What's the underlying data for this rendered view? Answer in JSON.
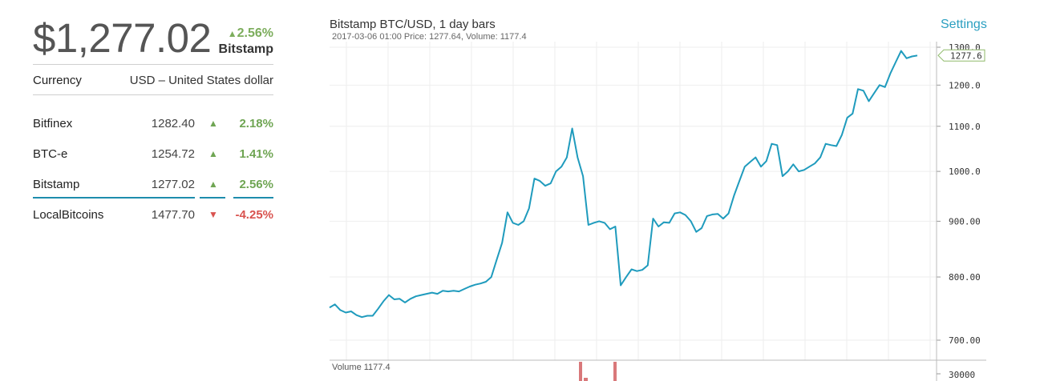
{
  "header": {
    "price": "$1,277.02",
    "change": "2.56%",
    "exchange": "Bitstamp"
  },
  "currency": {
    "label": "Currency",
    "value": "USD – United States dollar"
  },
  "exchanges": [
    {
      "name": "Bitfinex",
      "price": "1282.40",
      "direction": "up",
      "pct": "2.18%"
    },
    {
      "name": "BTC-e",
      "price": "1254.72",
      "direction": "up",
      "pct": "1.41%"
    },
    {
      "name": "Bitstamp",
      "price": "1277.02",
      "direction": "up",
      "pct": "2.56%",
      "selected": true
    },
    {
      "name": "LocalBitcoins",
      "price": "1477.70",
      "direction": "down",
      "pct": "-4.25%"
    }
  ],
  "chart": {
    "title": "Bitstamp BTC/USD, 1 day bars",
    "subtitle": "2017-03-06 01:00   Price: 1277.64, Volume: 1177.4",
    "settings_label": "Settings",
    "volume_label": "Volume 1177.4",
    "current_price_tag": "1277.6",
    "colors": {
      "line": "#1f9bbd",
      "grid": "#eeeeee",
      "volume": "#d9787a",
      "accent": "#2a9fc0"
    }
  },
  "chart_data": {
    "type": "line",
    "title": "Bitstamp BTC/USD, 1 day bars",
    "y_scale": "log",
    "y_ticks": [
      "1300.0",
      "1200.0",
      "1100.0",
      "1000.0",
      "900.00",
      "800.00",
      "700.00"
    ],
    "volume_ticks": [
      "30000"
    ],
    "ylim": [
      680,
      1310
    ],
    "grid": true,
    "series": [
      {
        "values": [
          750,
          755,
          746,
          742,
          744,
          738,
          735,
          737,
          737,
          748,
          760,
          770,
          763,
          764,
          758,
          764,
          768,
          770,
          772,
          774,
          772,
          777,
          776,
          777,
          776,
          780,
          784,
          787,
          789,
          792,
          800,
          830,
          860,
          917,
          897,
          893,
          900,
          925,
          985,
          980,
          970,
          975,
          1000,
          1010,
          1030,
          1095,
          1030,
          990,
          893,
          897,
          900,
          897,
          885,
          890,
          786,
          800,
          813,
          810,
          812,
          820,
          905,
          890,
          898,
          897,
          915,
          917,
          912,
          900,
          880,
          887,
          910,
          913,
          914,
          905,
          915,
          950,
          980,
          1010,
          1020,
          1030,
          1010,
          1022,
          1060,
          1057,
          990,
          1000,
          1015,
          1000,
          1003,
          1010,
          1017,
          1030,
          1060,
          1057,
          1055,
          1080,
          1120,
          1130,
          1190,
          1186,
          1160,
          1180,
          1200,
          1195,
          1230,
          1260,
          1290,
          1270,
          1275,
          1277.6
        ]
      }
    ],
    "volume_series": {
      "description": "volume bars",
      "values": [
        30000,
        22000
      ]
    }
  }
}
